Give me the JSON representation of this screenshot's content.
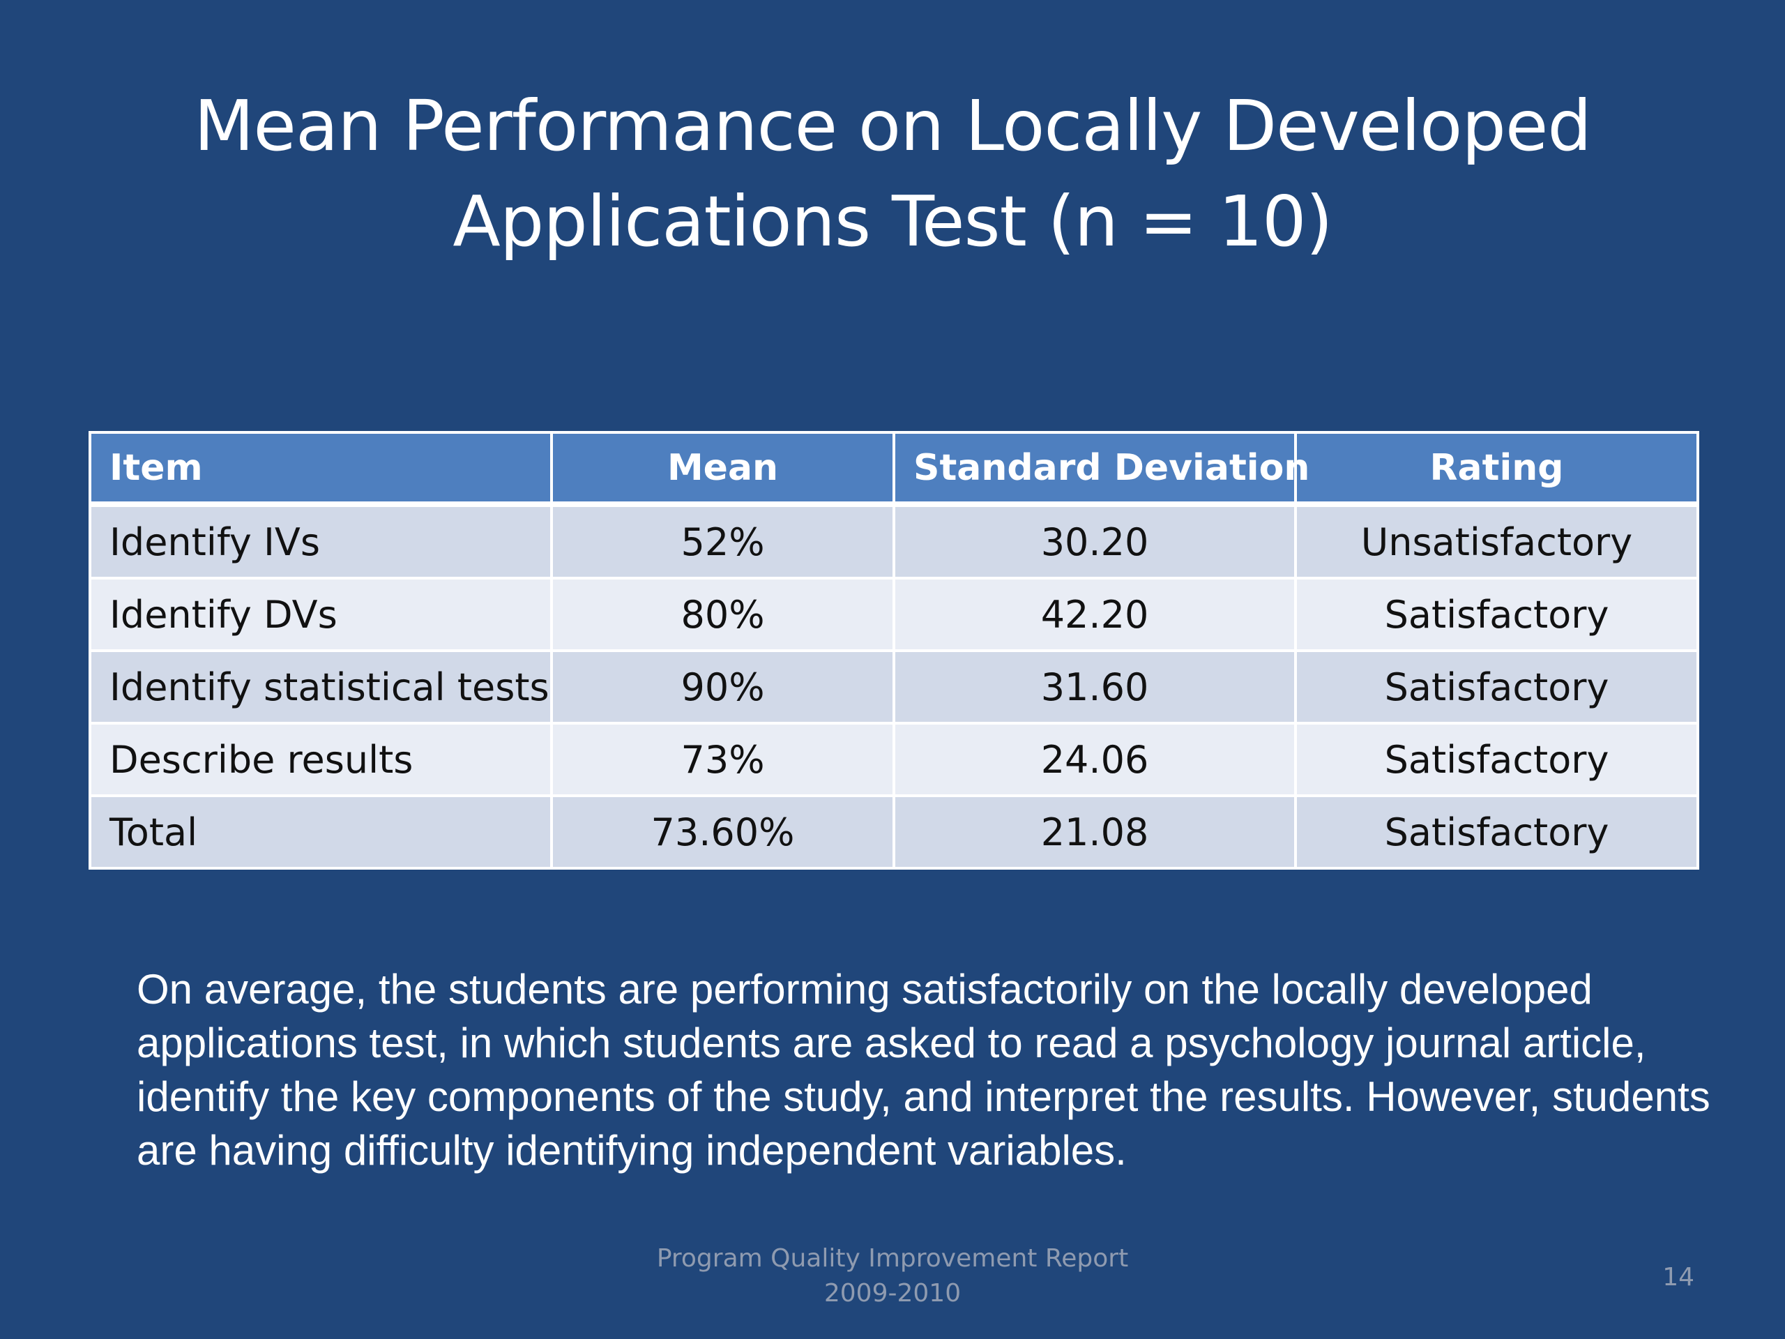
{
  "slide": {
    "title_line1": "Mean Performance on Locally Developed",
    "title_line2": "Applications Test (n = 10)",
    "table": {
      "headers": [
        "Item",
        "Mean",
        "Standard Deviation",
        "Rating"
      ],
      "rows": [
        [
          "Identify IVs",
          "52%",
          "30.20",
          "Unsatisfactory"
        ],
        [
          "Identify DVs",
          "80%",
          "42.20",
          "Satisfactory"
        ],
        [
          "Identify statistical tests",
          "90%",
          "31.60",
          "Satisfactory"
        ],
        [
          "Describe results",
          "73%",
          "24.06",
          "Satisfactory"
        ],
        [
          "Total",
          "73.60%",
          "21.08",
          "Satisfactory"
        ]
      ]
    },
    "summary": "On average, the students are performing satisfactorily on the locally developed applications test, in which students are asked to read a psychology journal article, identify the key components of the study, and interpret the results. However, students are having difficulty identifying independent variables.",
    "footer_line1": "Program Quality Improvement Report",
    "footer_line2": "2009-2010",
    "page_number": "14"
  },
  "colors": {
    "background": "#20467a",
    "header_fill": "#4e7fbf",
    "row_odd": "#d1d9e8",
    "row_even": "#e9edf5",
    "footer_text": "#8f9bb0"
  }
}
